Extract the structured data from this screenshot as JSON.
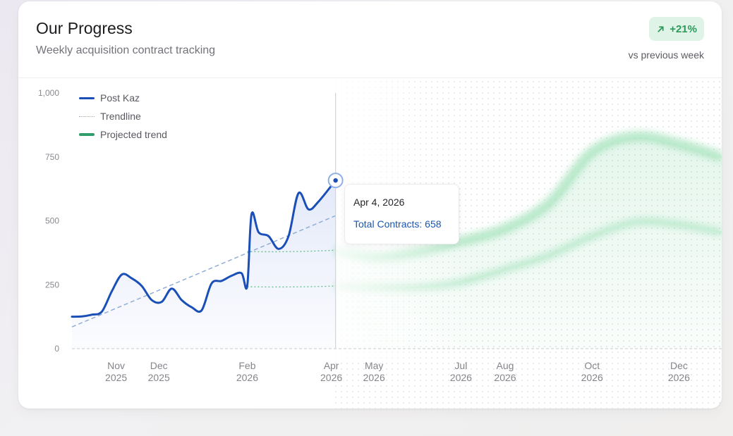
{
  "header": {
    "title": "Our Progress",
    "subtitle": "Weekly acquisition contract tracking",
    "badge_value": "+21%",
    "badge_caption": "vs previous week",
    "badge_icon": "arrow-up-right-icon"
  },
  "legend": [
    {
      "label": "Post Kaz",
      "swatch": "solid"
    },
    {
      "label": "Trendline",
      "swatch": "dotted"
    },
    {
      "label": "Projected trend",
      "swatch": "green"
    }
  ],
  "tooltip": {
    "date": "Apr 4, 2026",
    "value_text": "Total Contracts: 658"
  },
  "colors": {
    "series": "#1a4fb8",
    "trend": "#8aa9d4",
    "projection": "#2f9e6b",
    "badge_bg": "#dff4e7",
    "badge_fg": "#2a9a5c"
  },
  "chart_data": {
    "type": "line",
    "series": [
      {
        "name": "Post Kaz",
        "points": [
          [
            "2025-10-01",
            125
          ],
          [
            "2025-10-08",
            126
          ],
          [
            "2025-10-15",
            133
          ],
          [
            "2025-10-22",
            145
          ],
          [
            "2025-10-29",
            225
          ],
          [
            "2025-11-05",
            290
          ],
          [
            "2025-11-12",
            275
          ],
          [
            "2025-11-19",
            245
          ],
          [
            "2025-11-26",
            190
          ],
          [
            "2025-12-03",
            183
          ],
          [
            "2025-12-10",
            235
          ],
          [
            "2025-12-17",
            190
          ],
          [
            "2025-12-24",
            162
          ],
          [
            "2025-12-31",
            150
          ],
          [
            "2026-01-07",
            255
          ],
          [
            "2026-01-14",
            265
          ],
          [
            "2026-01-21",
            285
          ],
          [
            "2026-01-28",
            295
          ],
          [
            "2026-02-01",
            245
          ],
          [
            "2026-02-04",
            525
          ],
          [
            "2026-02-09",
            455
          ],
          [
            "2026-02-16",
            440
          ],
          [
            "2026-02-23",
            390
          ],
          [
            "2026-03-02",
            440
          ],
          [
            "2026-03-09",
            608
          ],
          [
            "2026-03-16",
            545
          ],
          [
            "2026-03-23",
            575
          ],
          [
            "2026-04-04",
            658
          ]
        ]
      },
      {
        "name": "Trendline",
        "points": [
          [
            "2025-10-01",
            85
          ],
          [
            "2026-04-04",
            520
          ]
        ]
      },
      {
        "name": "Projected trend",
        "upper": [
          [
            "2026-04-04",
            385
          ],
          [
            "2026-05-01",
            360
          ],
          [
            "2026-06-01",
            380
          ],
          [
            "2026-07-01",
            420
          ],
          [
            "2026-08-01",
            470
          ],
          [
            "2026-09-01",
            570
          ],
          [
            "2026-10-01",
            770
          ],
          [
            "2026-11-01",
            830
          ],
          [
            "2026-12-01",
            800
          ],
          [
            "2026-12-31",
            750
          ]
        ],
        "lower": [
          [
            "2026-04-04",
            245
          ],
          [
            "2026-05-01",
            240
          ],
          [
            "2026-06-01",
            240
          ],
          [
            "2026-07-01",
            260
          ],
          [
            "2026-08-01",
            310
          ],
          [
            "2026-09-01",
            365
          ],
          [
            "2026-10-01",
            440
          ],
          [
            "2026-11-01",
            495
          ],
          [
            "2026-12-01",
            485
          ],
          [
            "2026-12-31",
            455
          ]
        ]
      }
    ],
    "marker": {
      "date": "2026-04-04",
      "value": 658
    },
    "x_range": [
      "2025-10-01",
      "2026-12-31"
    ],
    "x_ticks": [
      {
        "date": "2025-11-01",
        "month": "Nov",
        "year": "2025"
      },
      {
        "date": "2025-12-01",
        "month": "Dec",
        "year": "2025"
      },
      {
        "date": "2026-02-01",
        "month": "Feb",
        "year": "2026"
      },
      {
        "date": "2026-04-01",
        "month": "Apr",
        "year": "2026"
      },
      {
        "date": "2026-05-01",
        "month": "May",
        "year": "2026"
      },
      {
        "date": "2026-07-01",
        "month": "Jul",
        "year": "2026"
      },
      {
        "date": "2026-08-01",
        "month": "Aug",
        "year": "2026"
      },
      {
        "date": "2026-10-01",
        "month": "Oct",
        "year": "2026"
      },
      {
        "date": "2026-12-01",
        "month": "Dec",
        "year": "2026"
      }
    ],
    "ylim": [
      0,
      1000
    ],
    "yticks": [
      {
        "value": 0,
        "label": "0"
      },
      {
        "value": 250,
        "label": "250"
      },
      {
        "value": 500,
        "label": "500"
      },
      {
        "value": 750,
        "label": "750"
      },
      {
        "value": 1000,
        "label": "1,000"
      }
    ],
    "legend_position": "top-left"
  }
}
